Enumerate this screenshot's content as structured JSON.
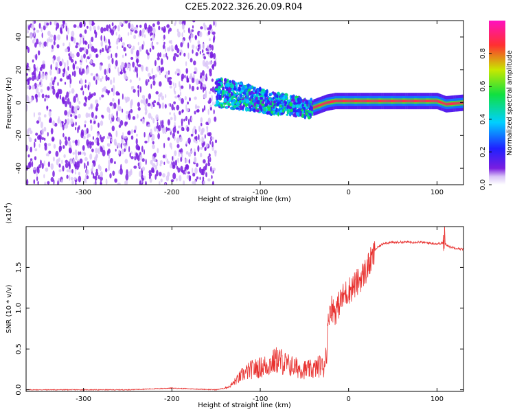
{
  "figure_title": "C2E5.2022.326.20.09.R04",
  "colors": {
    "snr_line": "#e8312f",
    "spectrogram_sparse": "#7a1ee0",
    "spectrogram_light": "#d9c4f7"
  },
  "chart_data": [
    {
      "type": "heatmap",
      "xlabel": "Height of straight line (km)",
      "ylabel": "Frequency (Hz)",
      "xlim": [
        -365,
        130
      ],
      "ylim": [
        -50,
        50
      ],
      "xticks": [
        -300,
        -200,
        -100,
        0,
        100
      ],
      "yticks": [
        -40,
        -20,
        0,
        20,
        40
      ],
      "colorbar": {
        "label": "Normalized spectral amplitude",
        "ticks": [
          "0.0",
          "0.2",
          "0.4",
          "0.6",
          "0.8"
        ],
        "range": [
          0,
          1
        ],
        "colormap": "rainbow (purple → blue → cyan → green → yellow → red → magenta)"
      },
      "regions": [
        {
          "x_range": [
            -365,
            -150
          ],
          "description": "noise",
          "frequency_range": [
            -50,
            50
          ],
          "amplitude": 0.05
        },
        {
          "x_range": [
            -150,
            -40
          ],
          "description": "signal",
          "frequency_center": 2,
          "amplitude": 0.35
        },
        {
          "x_range": [
            -40,
            130
          ],
          "description": "signal",
          "frequency_center": 1,
          "amplitude": 0.9
        }
      ],
      "signal_track": {
        "x": [
          -150,
          -120,
          -90,
          -60,
          -45,
          -35,
          -25,
          -15,
          0,
          50,
          100,
          110,
          130
        ],
        "frequency": [
          6,
          4,
          0,
          -2,
          -4,
          -2,
          0,
          1,
          1,
          1,
          1,
          -1,
          0
        ]
      }
    },
    {
      "type": "line",
      "xlabel": "Height of straight line (km)",
      "ylabel": "SNR (10 * v/v)",
      "scale_label": "(x10",
      "scale_exponent": "4",
      "xlim": [
        -365,
        130
      ],
      "ylim": [
        -0.02,
        2.0
      ],
      "xticks": [
        -300,
        -200,
        -100,
        0,
        100
      ],
      "yticks": [
        "0.0",
        "0.5",
        "1.0",
        "1.5"
      ],
      "series": [
        {
          "x": [
            -365,
            -300,
            -250,
            -200,
            -150,
            -135,
            -120,
            -110,
            -100,
            -90,
            -80,
            -70,
            -60,
            -50,
            -40,
            -30,
            -25,
            -22,
            -20,
            -15,
            -10,
            -5,
            0,
            10,
            20,
            30,
            40,
            60,
            80,
            100,
            108,
            115,
            130
          ],
          "y": [
            0.0,
            0.0,
            0.0,
            0.02,
            0.0,
            0.03,
            0.15,
            0.2,
            0.22,
            0.25,
            0.3,
            0.25,
            0.22,
            0.2,
            0.2,
            0.25,
            0.5,
            1.0,
            1.05,
            1.0,
            1.1,
            1.2,
            1.25,
            1.35,
            1.5,
            1.72,
            1.8,
            1.81,
            1.81,
            1.79,
            1.8,
            1.75,
            1.72
          ]
        }
      ]
    }
  ]
}
